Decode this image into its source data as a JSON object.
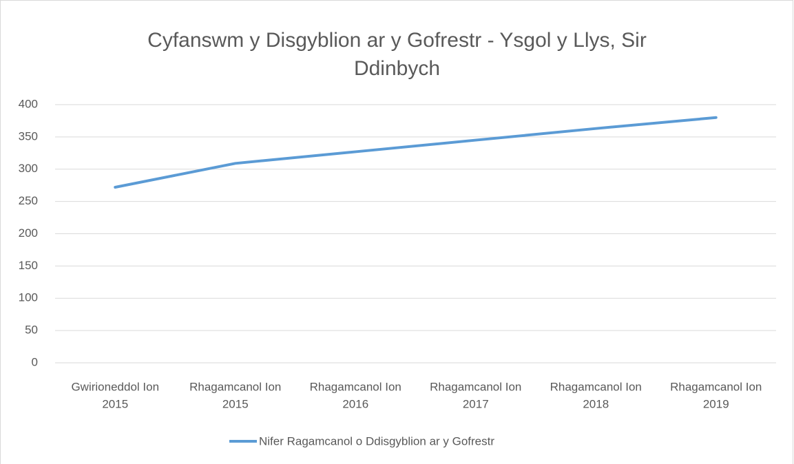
{
  "chart_data": {
    "type": "line",
    "title": "Cyfanswm y Disgyblion ar y Gofrestr - Ysgol y Llys, Sir Ddinbych",
    "categories": [
      [
        "Gwirioneddol Ion",
        "2015"
      ],
      [
        "Rhagamcanol Ion",
        "2015"
      ],
      [
        "Rhagamcanol Ion",
        "2016"
      ],
      [
        "Rhagamcanol Ion",
        "2017"
      ],
      [
        "Rhagamcanol Ion",
        "2018"
      ],
      [
        "Rhagamcanol Ion",
        "2019"
      ]
    ],
    "series": [
      {
        "name": "Nifer Ragamcanol o Ddisgyblion ar y Gofrestr",
        "color": "#5b9bd5",
        "values": [
          272,
          309,
          327,
          345,
          363,
          380
        ]
      }
    ],
    "ylim": [
      0,
      400
    ],
    "yticks": [
      0,
      50,
      100,
      150,
      200,
      250,
      300,
      350,
      400
    ],
    "grid": true,
    "legend": "bottom"
  }
}
